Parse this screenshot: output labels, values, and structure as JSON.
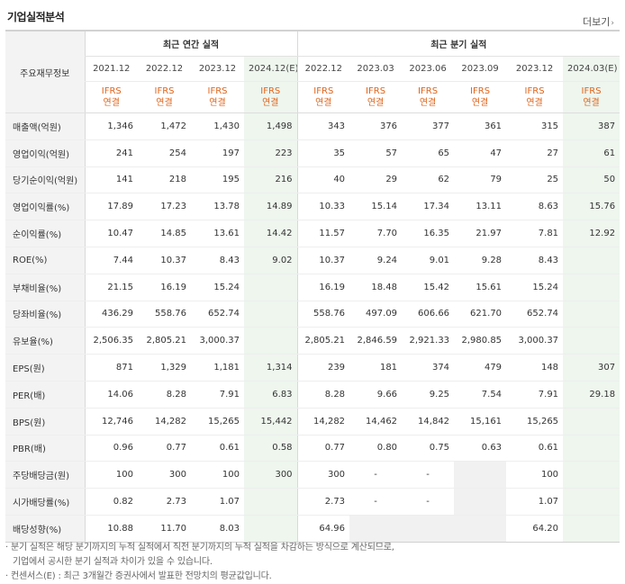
{
  "section_title": "기업실적분석",
  "more_link": "더보기",
  "header": {
    "row_label": "주요재무정보",
    "annual_group": "최근 연간 실적",
    "quarterly_group": "최근 분기 실적",
    "annual_periods": [
      "2021.12",
      "2022.12",
      "2023.12",
      "2024.12(E)"
    ],
    "quarterly_periods": [
      "2022.12",
      "2023.03",
      "2023.06",
      "2023.09",
      "2023.12",
      "2024.03(E)"
    ],
    "ifrs_line1": "IFRS",
    "ifrs_line2": "연결"
  },
  "rows": [
    {
      "label": "매출액(억원)",
      "values": [
        "1,346",
        "1,472",
        "1,430",
        "1,498",
        "343",
        "376",
        "377",
        "361",
        "315",
        "387"
      ]
    },
    {
      "label": "영업이익(억원)",
      "values": [
        "241",
        "254",
        "197",
        "223",
        "35",
        "57",
        "65",
        "47",
        "27",
        "61"
      ]
    },
    {
      "label": "당기순이익(억원)",
      "values": [
        "141",
        "218",
        "195",
        "216",
        "40",
        "29",
        "62",
        "79",
        "25",
        "50"
      ]
    },
    {
      "label": "영업이익률(%)",
      "values": [
        "17.89",
        "17.23",
        "13.78",
        "14.89",
        "10.33",
        "15.14",
        "17.34",
        "13.11",
        "8.63",
        "15.76"
      ]
    },
    {
      "label": "순이익률(%)",
      "values": [
        "10.47",
        "14.85",
        "13.61",
        "14.42",
        "11.57",
        "7.70",
        "16.35",
        "21.97",
        "7.81",
        "12.92"
      ]
    },
    {
      "label": "ROE(%)",
      "values": [
        "7.44",
        "10.37",
        "8.43",
        "9.02",
        "10.37",
        "9.24",
        "9.01",
        "9.28",
        "8.43",
        ""
      ]
    },
    {
      "label": "부채비율(%)",
      "values": [
        "21.15",
        "16.19",
        "15.24",
        "",
        "16.19",
        "18.48",
        "15.42",
        "15.61",
        "15.24",
        ""
      ]
    },
    {
      "label": "당좌비율(%)",
      "values": [
        "436.29",
        "558.76",
        "652.74",
        "",
        "558.76",
        "497.09",
        "606.66",
        "621.70",
        "652.74",
        ""
      ]
    },
    {
      "label": "유보율(%)",
      "values": [
        "2,506.35",
        "2,805.21",
        "3,000.37",
        "",
        "2,805.21",
        "2,846.59",
        "2,921.33",
        "2,980.85",
        "3,000.37",
        ""
      ]
    },
    {
      "label": "EPS(원)",
      "values": [
        "871",
        "1,329",
        "1,181",
        "1,314",
        "239",
        "181",
        "374",
        "479",
        "148",
        "307"
      ]
    },
    {
      "label": "PER(배)",
      "values": [
        "14.06",
        "8.28",
        "7.91",
        "6.83",
        "8.28",
        "9.66",
        "9.25",
        "7.54",
        "7.91",
        "29.18"
      ]
    },
    {
      "label": "BPS(원)",
      "values": [
        "12,746",
        "14,282",
        "15,265",
        "15,442",
        "14,282",
        "14,462",
        "14,842",
        "15,161",
        "15,265",
        ""
      ]
    },
    {
      "label": "PBR(배)",
      "values": [
        "0.96",
        "0.77",
        "0.61",
        "0.58",
        "0.77",
        "0.80",
        "0.75",
        "0.63",
        "0.61",
        ""
      ]
    },
    {
      "label": "주당배당금(원)",
      "values": [
        "100",
        "300",
        "100",
        "300",
        "300",
        "-",
        "-",
        "",
        "100",
        ""
      ]
    },
    {
      "label": "시가배당률(%)",
      "values": [
        "0.82",
        "2.73",
        "1.07",
        "",
        "2.73",
        "-",
        "-",
        "",
        "1.07",
        ""
      ]
    },
    {
      "label": "배당성향(%)",
      "values": [
        "10.88",
        "11.70",
        "8.03",
        "",
        "64.96",
        "",
        "",
        "",
        "64.20",
        ""
      ]
    }
  ],
  "notes": [
    "· 분기 실적은 해당 분기까지의 누적 실적에서 직전 분기까지의 누적 실적을 차감하는 방식으로 계산되므로,",
    "  기업에서 공시한 분기 실적과 차이가 있을 수 있습니다.",
    "· 컨센서스(E) : 최근 3개월간 증권사에서 발표한 전망치의 평균값입니다."
  ]
}
